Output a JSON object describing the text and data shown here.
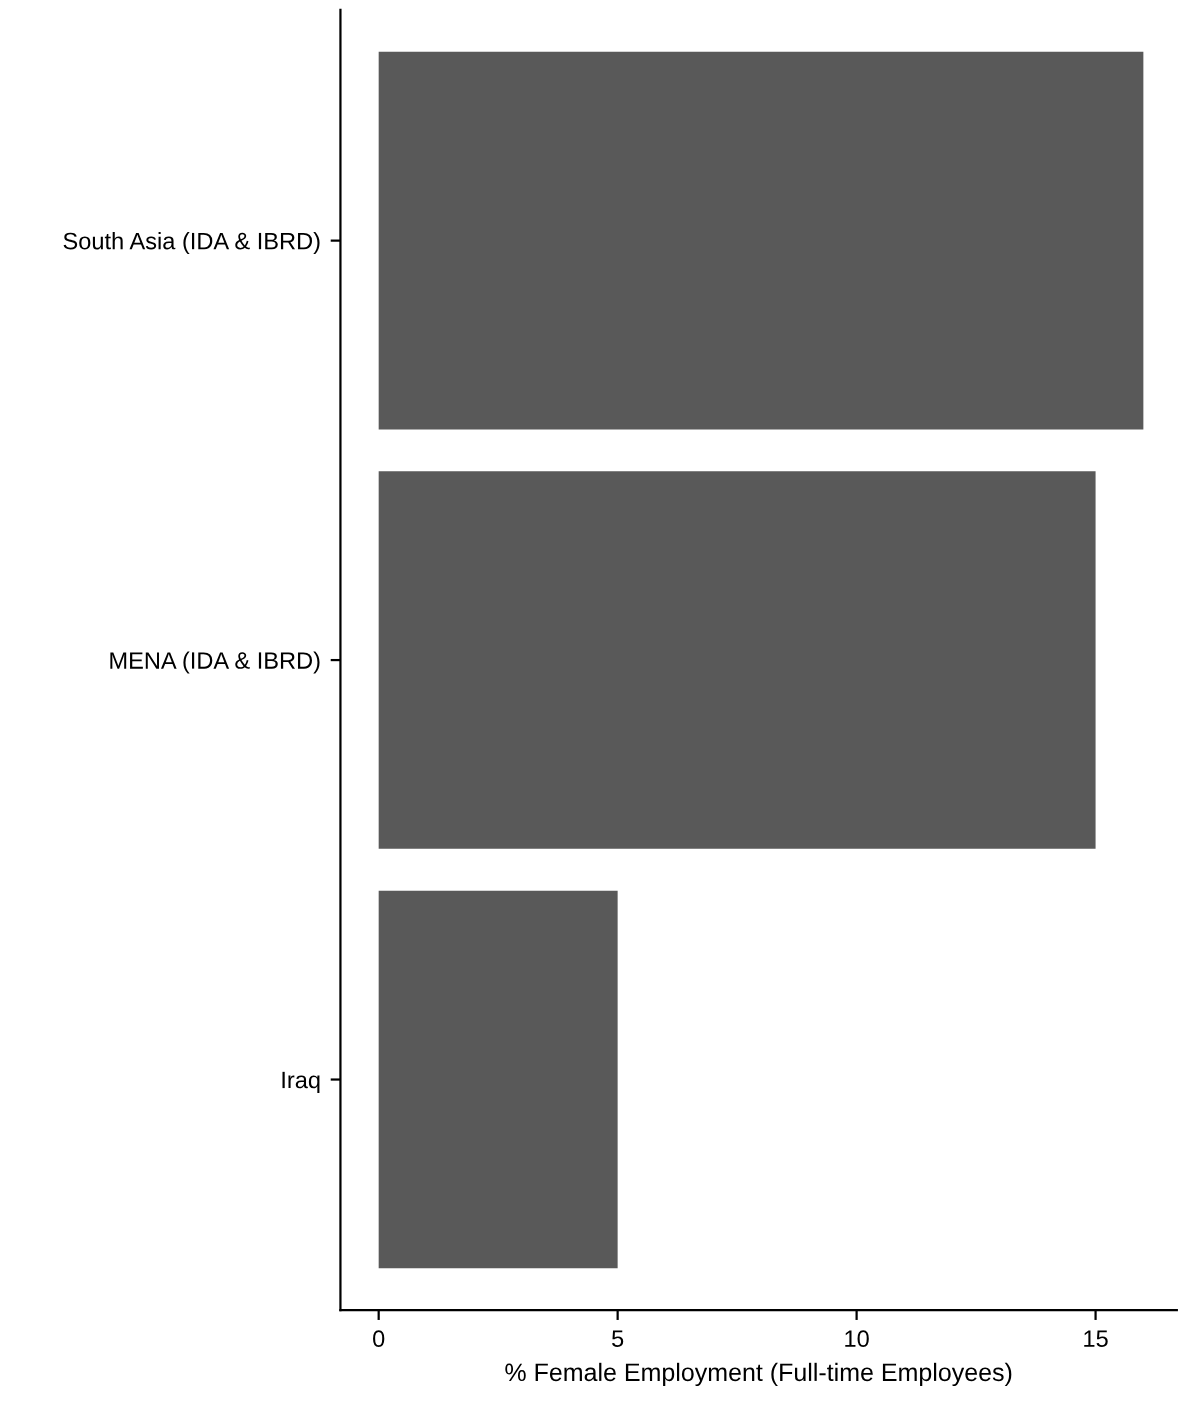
{
  "chart_data": {
    "type": "bar",
    "orientation": "horizontal",
    "categories": [
      "South Asia (IDA & IBRD)",
      "MENA (IDA & IBRD)",
      "Iraq"
    ],
    "values": [
      16.0,
      15.0,
      5.0
    ],
    "color": "#595959",
    "xlabel": "% Female Employment (Full-time Employees)",
    "xlim": [
      -0.8,
      16.7
    ],
    "xticks": [
      0,
      5,
      10,
      15
    ],
    "grid": false
  }
}
